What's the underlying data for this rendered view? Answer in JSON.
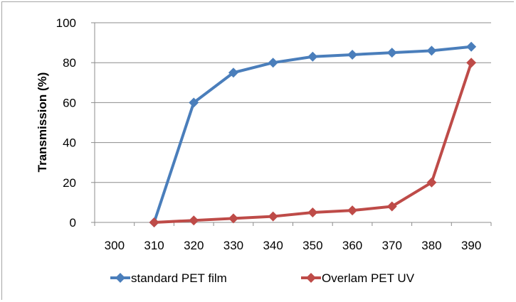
{
  "chart_data": {
    "type": "line",
    "title": "",
    "xlabel": "",
    "ylabel": "Transmission (%)",
    "categories": [
      300,
      310,
      320,
      330,
      340,
      350,
      360,
      370,
      380,
      390
    ],
    "ylim": [
      0,
      100
    ],
    "yticks": [
      0,
      20,
      40,
      60,
      80,
      100
    ],
    "grid": "horizontal",
    "legend_position": "bottom",
    "series": [
      {
        "name": "standard PET film",
        "color": "#4a7ebb",
        "marker": "diamond",
        "x": [
          310,
          320,
          330,
          340,
          350,
          360,
          370,
          380,
          390
        ],
        "values": [
          0,
          60,
          75,
          80,
          83,
          84,
          85,
          86,
          88
        ]
      },
      {
        "name": "Overlam PET UV",
        "color": "#be4b48",
        "marker": "diamond",
        "x": [
          310,
          320,
          330,
          340,
          350,
          360,
          370,
          380,
          390
        ],
        "values": [
          0,
          1,
          2,
          3,
          5,
          6,
          8,
          20,
          80
        ]
      }
    ]
  }
}
